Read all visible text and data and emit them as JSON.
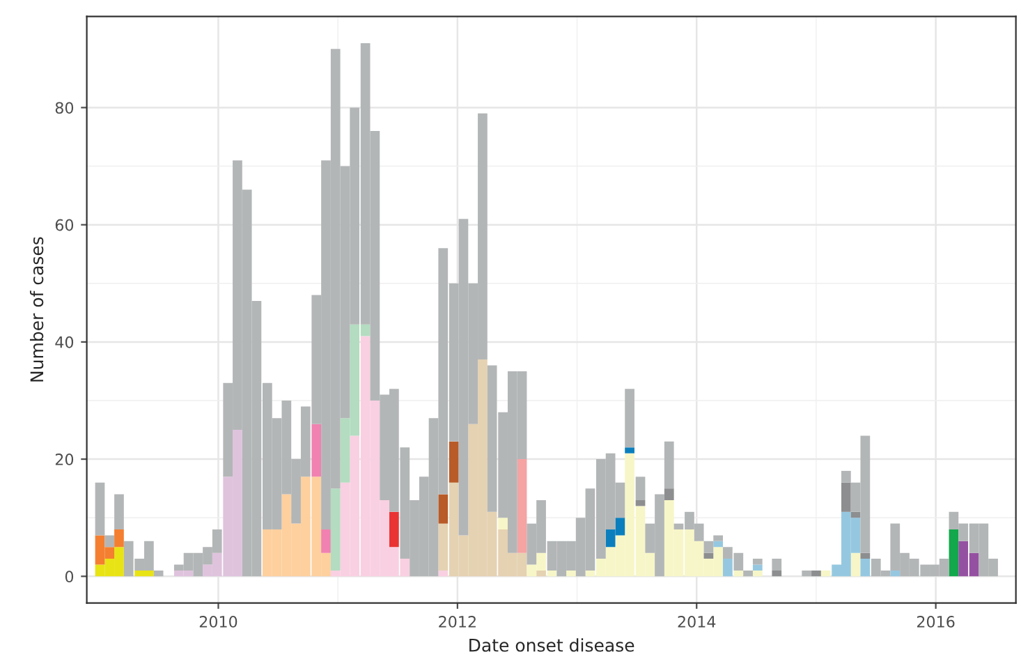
{
  "chart_data": {
    "type": "bar",
    "stacked": true,
    "xlabel": "Date onset disease",
    "ylabel": "Number of cases",
    "xlim": [
      2008.9,
      2016.67
    ],
    "ylim": [
      -4.55,
      95.55
    ],
    "xticks": [
      2010,
      2012,
      2014,
      2016
    ],
    "yticks": [
      0,
      20,
      40,
      60,
      80
    ],
    "grid": true,
    "x": [
      2009.01,
      2009.09,
      2009.17,
      2009.25,
      2009.34,
      2009.42,
      2009.5,
      2009.58,
      2009.67,
      2009.75,
      2009.83,
      2009.91,
      2009.99,
      2010.08,
      2010.16,
      2010.24,
      2010.32,
      2010.41,
      2010.49,
      2010.57,
      2010.65,
      2010.73,
      2010.82,
      2010.9,
      2010.98,
      2011.06,
      2011.14,
      2011.23,
      2011.31,
      2011.39,
      2011.47,
      2011.56,
      2011.64,
      2011.72,
      2011.8,
      2011.88,
      2011.97,
      2012.05,
      2012.13,
      2012.21,
      2012.29,
      2012.38,
      2012.46,
      2012.54,
      2012.62,
      2012.7,
      2012.79,
      2012.87,
      2012.95,
      2013.03,
      2013.11,
      2013.2,
      2013.28,
      2013.36,
      2013.44,
      2013.53,
      2013.61,
      2013.69,
      2013.77,
      2013.85,
      2013.94,
      2014.02,
      2014.1,
      2014.18,
      2014.26,
      2014.35,
      2014.43,
      2014.51,
      2014.59,
      2014.67,
      2014.76,
      2014.84,
      2014.92,
      2015.0,
      2015.08,
      2015.17,
      2015.25,
      2015.33,
      2015.41,
      2015.5,
      2015.58,
      2015.66,
      2015.74,
      2015.82,
      2015.91,
      2015.99,
      2016.07,
      2016.15,
      2016.23,
      2016.32,
      2016.4,
      2016.48
    ],
    "series": [
      {
        "color": "#e8e314",
        "values": [
          2,
          3,
          5,
          null,
          1,
          1,
          null,
          null,
          null,
          null,
          null,
          null,
          null,
          null,
          null,
          null,
          null,
          null,
          null,
          null,
          null,
          null,
          null,
          null,
          null,
          null,
          null,
          null,
          null,
          null,
          null,
          null,
          null,
          null,
          null,
          null,
          null,
          null,
          null,
          null,
          null,
          null,
          null,
          null,
          null,
          null,
          null,
          null,
          null,
          null,
          null,
          null,
          null,
          null,
          null,
          null,
          null,
          null,
          null,
          null,
          null,
          null,
          null,
          null,
          null,
          null,
          null,
          null,
          null,
          null,
          null,
          null,
          null,
          null,
          null,
          null,
          null,
          null,
          null,
          null,
          null,
          null,
          null,
          null,
          null,
          null,
          null,
          null,
          null,
          null,
          null,
          null
        ]
      },
      {
        "color": "#f47f30",
        "values": [
          5,
          2,
          3,
          null,
          null,
          null,
          null,
          null,
          null,
          null,
          null,
          null,
          null,
          null,
          null,
          null,
          null,
          null,
          null,
          null,
          null,
          null,
          null,
          null,
          null,
          null,
          null,
          null,
          null,
          null,
          null,
          null,
          null,
          null,
          null,
          null,
          null,
          null,
          null,
          null,
          null,
          null,
          null,
          null,
          null,
          null,
          null,
          null,
          null,
          null,
          null,
          null,
          null,
          null,
          null,
          null,
          null,
          null,
          null,
          null,
          null,
          null,
          null,
          null,
          null,
          null,
          null,
          null,
          null,
          null,
          null,
          null,
          null,
          null,
          null,
          null,
          null,
          null,
          null,
          null,
          null,
          null,
          null,
          null,
          null,
          null,
          null,
          null,
          null,
          null,
          null,
          null
        ]
      },
      {
        "color": "#dfc3dd",
        "values": [
          null,
          null,
          null,
          null,
          null,
          null,
          null,
          null,
          1,
          1,
          null,
          2,
          4,
          17,
          25,
          null,
          null,
          null,
          null,
          null,
          null,
          null,
          null,
          null,
          null,
          null,
          null,
          null,
          null,
          null,
          null,
          null,
          null,
          null,
          null,
          null,
          null,
          null,
          null,
          null,
          null,
          null,
          null,
          null,
          null,
          null,
          null,
          null,
          null,
          null,
          null,
          null,
          null,
          null,
          null,
          null,
          null,
          null,
          null,
          null,
          null,
          null,
          null,
          null,
          null,
          null,
          null,
          null,
          null,
          null,
          null,
          null,
          null,
          null,
          null,
          null,
          null,
          null,
          null,
          null,
          null,
          null,
          null,
          null,
          null,
          null,
          null,
          null,
          null,
          null,
          null,
          null
        ]
      },
      {
        "color": "#fdd09e",
        "values": [
          null,
          null,
          null,
          null,
          null,
          null,
          null,
          null,
          null,
          null,
          null,
          null,
          null,
          null,
          null,
          null,
          null,
          8,
          8,
          14,
          9,
          17,
          17,
          4,
          null,
          null,
          null,
          null,
          null,
          null,
          null,
          null,
          null,
          null,
          null,
          null,
          null,
          null,
          null,
          null,
          null,
          null,
          null,
          null,
          null,
          null,
          null,
          null,
          null,
          null,
          null,
          null,
          null,
          null,
          null,
          null,
          null,
          null,
          null,
          null,
          null,
          null,
          null,
          null,
          null,
          null,
          null,
          null,
          null,
          null,
          null,
          null,
          null,
          null,
          null,
          null,
          null,
          null,
          null,
          null,
          null,
          null,
          null,
          null,
          null,
          null,
          null,
          null,
          null,
          null,
          null,
          null
        ]
      },
      {
        "color": "#f081b0",
        "values": [
          null,
          null,
          null,
          null,
          null,
          null,
          null,
          null,
          null,
          null,
          null,
          null,
          null,
          null,
          null,
          null,
          null,
          null,
          null,
          null,
          null,
          null,
          9,
          4,
          null,
          null,
          null,
          null,
          null,
          null,
          null,
          null,
          null,
          null,
          null,
          null,
          null,
          null,
          null,
          null,
          null,
          null,
          null,
          null,
          null,
          null,
          null,
          null,
          null,
          null,
          null,
          null,
          null,
          null,
          null,
          null,
          null,
          null,
          null,
          null,
          null,
          null,
          null,
          null,
          null,
          null,
          null,
          null,
          null,
          null,
          null,
          null,
          null,
          null,
          null,
          null,
          null,
          null,
          null,
          null,
          null,
          null,
          null,
          null,
          null,
          null,
          null,
          null,
          null,
          null,
          null,
          null
        ]
      },
      {
        "color": "#f9d0e1",
        "values": [
          null,
          null,
          null,
          null,
          null,
          null,
          null,
          null,
          null,
          null,
          null,
          null,
          null,
          null,
          null,
          null,
          null,
          null,
          null,
          null,
          null,
          null,
          null,
          null,
          1,
          16,
          24,
          41,
          30,
          13,
          5,
          3,
          null,
          null,
          null,
          1,
          null,
          null,
          null,
          null,
          null,
          null,
          null,
          null,
          null,
          null,
          null,
          null,
          null,
          null,
          null,
          null,
          null,
          null,
          null,
          null,
          null,
          null,
          null,
          null,
          null,
          null,
          null,
          null,
          null,
          null,
          null,
          null,
          null,
          null,
          null,
          null,
          null,
          null,
          null,
          null,
          null,
          null,
          null,
          null,
          null,
          null,
          null,
          null,
          null,
          null,
          null,
          null,
          null,
          null,
          null,
          null
        ]
      },
      {
        "color": "#b3dcc0",
        "values": [
          null,
          null,
          null,
          null,
          null,
          null,
          null,
          null,
          null,
          null,
          null,
          null,
          null,
          null,
          null,
          null,
          null,
          null,
          null,
          null,
          null,
          null,
          null,
          null,
          14,
          11,
          19,
          2,
          null,
          null,
          null,
          null,
          null,
          null,
          null,
          null,
          null,
          null,
          null,
          null,
          null,
          null,
          null,
          null,
          null,
          null,
          null,
          null,
          null,
          null,
          null,
          null,
          null,
          null,
          null,
          null,
          null,
          null,
          null,
          null,
          null,
          null,
          null,
          null,
          null,
          null,
          null,
          null,
          null,
          null,
          null,
          null,
          null,
          null,
          null,
          null,
          null,
          null,
          null,
          null,
          null,
          null,
          null,
          null,
          null,
          null,
          null,
          null,
          null,
          null,
          null,
          null
        ]
      },
      {
        "color": "#e93433",
        "values": [
          null,
          null,
          null,
          null,
          null,
          null,
          null,
          null,
          null,
          null,
          null,
          null,
          null,
          null,
          null,
          null,
          null,
          null,
          null,
          null,
          null,
          null,
          null,
          null,
          null,
          null,
          null,
          null,
          null,
          null,
          6,
          null,
          null,
          null,
          null,
          null,
          null,
          null,
          null,
          null,
          null,
          null,
          null,
          null,
          null,
          null,
          null,
          null,
          null,
          null,
          null,
          null,
          null,
          null,
          null,
          null,
          null,
          null,
          null,
          null,
          null,
          null,
          null,
          null,
          null,
          null,
          null,
          null,
          null,
          null,
          null,
          null,
          null,
          null,
          null,
          null,
          null,
          null,
          null,
          null,
          null,
          null,
          null,
          null,
          null,
          null,
          null,
          null,
          null,
          null,
          null,
          null
        ]
      },
      {
        "color": "#e5d2b2",
        "values": [
          null,
          null,
          null,
          null,
          null,
          null,
          null,
          null,
          null,
          null,
          null,
          null,
          null,
          null,
          null,
          null,
          null,
          null,
          null,
          null,
          null,
          null,
          null,
          null,
          null,
          null,
          null,
          null,
          null,
          null,
          null,
          null,
          null,
          null,
          null,
          8,
          16,
          7,
          26,
          37,
          11,
          8,
          4,
          4,
          null,
          1,
          null,
          null,
          null,
          null,
          null,
          null,
          null,
          null,
          null,
          null,
          null,
          null,
          null,
          null,
          null,
          null,
          null,
          null,
          null,
          null,
          null,
          null,
          null,
          null,
          null,
          null,
          null,
          null,
          null,
          null,
          null,
          null,
          null,
          null,
          null,
          null,
          null,
          null,
          null,
          null,
          null,
          null,
          null,
          null,
          null,
          null
        ]
      },
      {
        "color": "#b85b28",
        "values": [
          null,
          null,
          null,
          null,
          null,
          null,
          null,
          null,
          null,
          null,
          null,
          null,
          null,
          null,
          null,
          null,
          null,
          null,
          null,
          null,
          null,
          null,
          null,
          null,
          null,
          null,
          null,
          null,
          null,
          null,
          null,
          null,
          null,
          null,
          null,
          5,
          7,
          null,
          null,
          null,
          null,
          null,
          null,
          null,
          null,
          null,
          null,
          null,
          null,
          null,
          null,
          null,
          null,
          null,
          null,
          null,
          null,
          null,
          null,
          null,
          null,
          null,
          null,
          null,
          null,
          null,
          null,
          null,
          null,
          null,
          null,
          null,
          null,
          null,
          null,
          null,
          null,
          null,
          null,
          null,
          null,
          null,
          null,
          null,
          null,
          null,
          null,
          null,
          null,
          null,
          null,
          null
        ]
      },
      {
        "color": "#f5a3a3",
        "values": [
          null,
          null,
          null,
          null,
          null,
          null,
          null,
          null,
          null,
          null,
          null,
          null,
          null,
          null,
          null,
          null,
          null,
          null,
          null,
          null,
          null,
          null,
          null,
          null,
          null,
          null,
          null,
          null,
          null,
          null,
          null,
          null,
          null,
          null,
          null,
          null,
          null,
          null,
          null,
          null,
          null,
          null,
          null,
          16,
          null,
          null,
          null,
          null,
          null,
          null,
          null,
          null,
          null,
          null,
          null,
          null,
          null,
          null,
          null,
          null,
          null,
          null,
          null,
          null,
          null,
          null,
          null,
          null,
          null,
          null,
          null,
          null,
          null,
          null,
          null,
          null,
          null,
          null,
          null,
          null,
          null,
          null,
          null,
          null,
          null,
          null,
          null,
          null,
          null,
          null,
          null,
          null
        ]
      },
      {
        "color": "#f7f6c8",
        "values": [
          null,
          null,
          null,
          null,
          null,
          null,
          null,
          null,
          null,
          null,
          null,
          null,
          null,
          null,
          null,
          null,
          null,
          null,
          null,
          null,
          null,
          null,
          null,
          null,
          null,
          null,
          null,
          null,
          null,
          null,
          null,
          null,
          null,
          null,
          null,
          null,
          null,
          null,
          null,
          null,
          null,
          2,
          null,
          null,
          2,
          3,
          1,
          null,
          1,
          null,
          1,
          3,
          5,
          7,
          21,
          12,
          4,
          null,
          13,
          8,
          8,
          6,
          3,
          5,
          null,
          1,
          null,
          1,
          null,
          null,
          null,
          null,
          null,
          null,
          1,
          null,
          null,
          4,
          null,
          null,
          null,
          null,
          null,
          null,
          null,
          null,
          null,
          null,
          null,
          null,
          null,
          null
        ]
      },
      {
        "color": "#0b7fbd",
        "values": [
          null,
          null,
          null,
          null,
          null,
          null,
          null,
          null,
          null,
          null,
          null,
          null,
          null,
          null,
          null,
          null,
          null,
          null,
          null,
          null,
          null,
          null,
          null,
          null,
          null,
          null,
          null,
          null,
          null,
          null,
          null,
          null,
          null,
          null,
          null,
          null,
          null,
          null,
          null,
          null,
          null,
          null,
          null,
          null,
          null,
          null,
          null,
          null,
          null,
          null,
          null,
          null,
          3,
          3,
          1,
          null,
          null,
          null,
          null,
          null,
          null,
          null,
          null,
          null,
          null,
          null,
          null,
          null,
          null,
          null,
          null,
          null,
          null,
          null,
          null,
          null,
          null,
          null,
          null,
          null,
          null,
          null,
          null,
          null,
          null,
          null,
          null,
          null,
          null,
          null,
          null,
          null
        ]
      },
      {
        "color": "#95c8e0",
        "values": [
          null,
          null,
          null,
          null,
          null,
          null,
          null,
          null,
          null,
          null,
          null,
          null,
          null,
          null,
          null,
          null,
          null,
          null,
          null,
          null,
          null,
          null,
          null,
          null,
          null,
          null,
          null,
          null,
          null,
          null,
          null,
          null,
          null,
          null,
          null,
          null,
          null,
          null,
          null,
          null,
          null,
          null,
          null,
          null,
          null,
          null,
          null,
          null,
          null,
          null,
          null,
          null,
          null,
          null,
          null,
          null,
          null,
          null,
          null,
          null,
          null,
          null,
          null,
          1,
          3,
          null,
          null,
          1,
          null,
          null,
          null,
          null,
          null,
          null,
          null,
          2,
          11,
          6,
          3,
          null,
          null,
          1,
          null,
          null,
          null,
          null,
          null,
          null,
          null,
          null,
          null,
          null
        ]
      },
      {
        "color": "#8d8e8f",
        "values": [
          null,
          null,
          null,
          null,
          null,
          null,
          null,
          null,
          null,
          null,
          null,
          null,
          null,
          null,
          null,
          null,
          null,
          null,
          null,
          null,
          null,
          null,
          null,
          null,
          null,
          null,
          null,
          null,
          null,
          null,
          null,
          null,
          null,
          null,
          null,
          null,
          null,
          null,
          null,
          null,
          null,
          null,
          null,
          null,
          null,
          null,
          null,
          null,
          null,
          null,
          null,
          null,
          null,
          null,
          null,
          1,
          null,
          null,
          2,
          null,
          null,
          null,
          1,
          null,
          null,
          null,
          null,
          null,
          null,
          1,
          null,
          null,
          null,
          1,
          null,
          null,
          5,
          1,
          1,
          null,
          null,
          null,
          null,
          null,
          null,
          null,
          null,
          null,
          null,
          null,
          null,
          null
        ]
      },
      {
        "color": "#12a84b",
        "values": [
          null,
          null,
          null,
          null,
          null,
          null,
          null,
          null,
          null,
          null,
          null,
          null,
          null,
          null,
          null,
          null,
          null,
          null,
          null,
          null,
          null,
          null,
          null,
          null,
          null,
          null,
          null,
          null,
          null,
          null,
          null,
          null,
          null,
          null,
          null,
          null,
          null,
          null,
          null,
          null,
          null,
          null,
          null,
          null,
          null,
          null,
          null,
          null,
          null,
          null,
          null,
          null,
          null,
          null,
          null,
          null,
          null,
          null,
          null,
          null,
          null,
          null,
          null,
          null,
          null,
          null,
          null,
          null,
          null,
          null,
          null,
          null,
          null,
          null,
          null,
          null,
          null,
          null,
          null,
          null,
          null,
          null,
          null,
          null,
          null,
          null,
          null,
          8,
          null,
          null,
          null,
          null
        ]
      },
      {
        "color": "#9551a1",
        "values": [
          null,
          null,
          null,
          null,
          null,
          null,
          null,
          null,
          null,
          null,
          null,
          null,
          null,
          null,
          null,
          null,
          null,
          null,
          null,
          null,
          null,
          null,
          null,
          null,
          null,
          null,
          null,
          null,
          null,
          null,
          null,
          null,
          null,
          null,
          null,
          null,
          null,
          null,
          null,
          null,
          null,
          null,
          null,
          null,
          null,
          null,
          null,
          null,
          null,
          null,
          null,
          null,
          null,
          null,
          null,
          null,
          null,
          null,
          null,
          null,
          null,
          null,
          null,
          null,
          null,
          null,
          null,
          null,
          null,
          null,
          null,
          null,
          null,
          null,
          null,
          null,
          null,
          null,
          null,
          null,
          null,
          null,
          null,
          null,
          null,
          null,
          null,
          null,
          6,
          4,
          null,
          null
        ]
      },
      {
        "color": "#b3b6b7",
        "values": [
          9,
          2,
          6,
          6,
          2,
          5,
          1,
          0,
          1,
          3,
          4,
          3,
          4,
          16,
          46,
          66,
          47,
          25,
          19,
          16,
          11,
          12,
          22,
          63,
          75,
          43,
          37,
          48,
          46,
          18,
          21,
          19,
          13,
          17,
          27,
          42,
          27,
          54,
          24,
          42,
          25,
          18,
          31,
          15,
          7,
          9,
          5,
          6,
          5,
          10,
          14,
          17,
          13,
          6,
          10,
          4,
          5,
          14,
          8,
          1,
          3,
          3,
          2,
          1,
          2,
          3,
          1,
          1,
          0,
          2,
          0,
          0,
          1,
          0,
          0,
          0,
          2,
          5,
          20,
          3,
          1,
          8,
          4,
          3,
          2,
          2,
          3,
          3,
          3,
          5,
          9,
          3
        ]
      }
    ]
  }
}
